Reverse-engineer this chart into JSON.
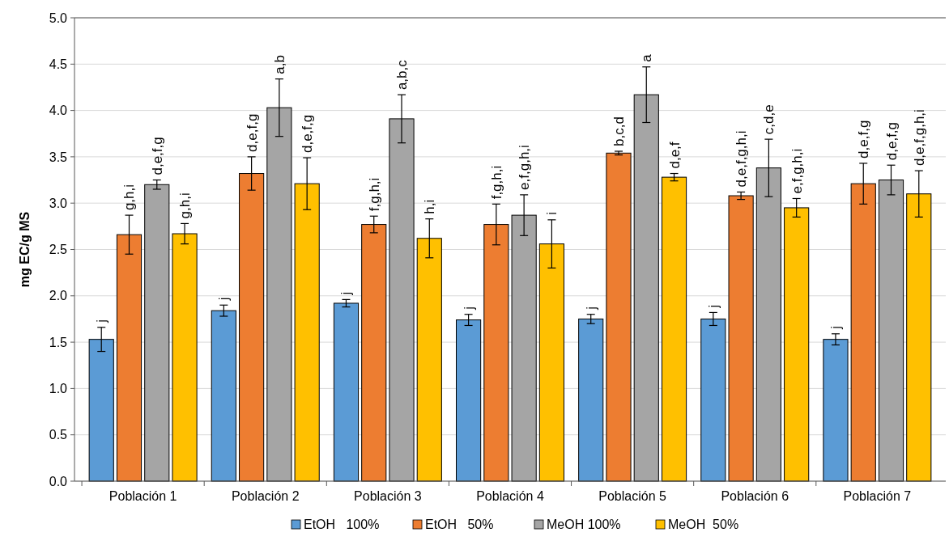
{
  "chart_data": {
    "type": "bar",
    "ylabel": "mg EC/g MS",
    "categories": [
      "Población 1",
      "Población 2",
      "Población 3",
      "Población 4",
      "Población 5",
      "Población 6",
      "Población 7"
    ],
    "series": [
      {
        "name": "EtOH   100%",
        "color": "#5b9bd5",
        "values": [
          1.53,
          1.84,
          1.92,
          1.74,
          1.75,
          1.75,
          1.53
        ],
        "errors": [
          0.13,
          0.06,
          0.04,
          0.06,
          0.05,
          0.07,
          0.06
        ],
        "value_labels": [
          "j",
          "j",
          "j",
          "j",
          "j",
          "j",
          "j"
        ]
      },
      {
        "name": "EtOH   50%",
        "color": "#ed7d31",
        "values": [
          2.66,
          3.32,
          2.77,
          2.77,
          3.54,
          3.08,
          3.21
        ],
        "errors": [
          0.21,
          0.18,
          0.09,
          0.22,
          0.02,
          0.04,
          0.22
        ],
        "value_labels": [
          "g,h,i",
          "d,e,f,g",
          "f,g,h,i",
          "f,g,h,i",
          "b,c,d",
          "d,e,f,g,h,i",
          "d,e,f,g"
        ]
      },
      {
        "name": "MeOH 100%",
        "color": "#a5a5a5",
        "values": [
          3.2,
          4.03,
          3.91,
          2.87,
          4.17,
          3.38,
          3.25
        ],
        "errors": [
          0.05,
          0.31,
          0.26,
          0.22,
          0.3,
          0.31,
          0.16
        ],
        "value_labels": [
          "d,e,f,g",
          "a,b",
          "a,b,c",
          "e,f,g,h,i",
          "a",
          "c,d,e",
          "d,e,f,g"
        ]
      },
      {
        "name": "MeOH  50%",
        "color": "#ffc000",
        "values": [
          2.67,
          3.21,
          2.62,
          2.56,
          3.28,
          2.95,
          3.1
        ],
        "errors": [
          0.11,
          0.28,
          0.21,
          0.26,
          0.04,
          0.1,
          0.25
        ],
        "value_labels": [
          "g,h,i",
          "d,e,f,g",
          "h,i",
          "i",
          "d,e,f",
          "e,f,g,h,i",
          "d,e,f,g,h,i"
        ]
      }
    ],
    "ylim": [
      0,
      5
    ],
    "yticks": [
      {
        "value": 0,
        "label": "0.0"
      },
      {
        "value": 0.5,
        "label": "0.5"
      },
      {
        "value": 1,
        "label": "1.0"
      },
      {
        "value": 1.5,
        "label": "1.5"
      },
      {
        "value": 2,
        "label": "2.0"
      },
      {
        "value": 2.5,
        "label": "2.5"
      },
      {
        "value": 3,
        "label": "3.0"
      },
      {
        "value": 3.5,
        "label": "3.5"
      },
      {
        "value": 4,
        "label": "4.0"
      },
      {
        "value": 4.5,
        "label": "4.5"
      },
      {
        "value": 5,
        "label": "5.0"
      }
    ],
    "grid": "y",
    "legend": "bottom"
  }
}
